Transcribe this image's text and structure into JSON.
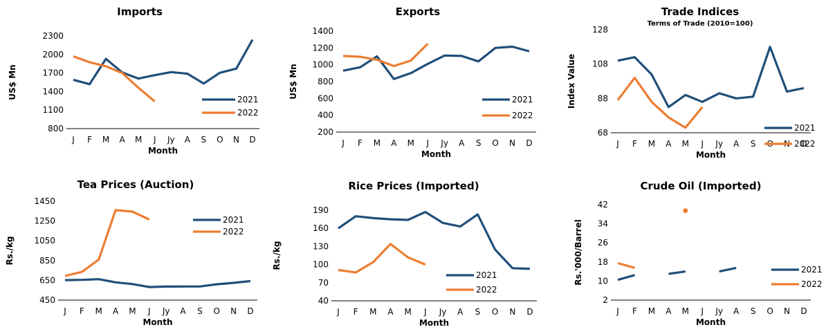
{
  "colors": {
    "s2021": "#1f4e79",
    "s2022": "#ed7d31"
  },
  "chart_data": [
    {
      "type": "line",
      "title": "Imports",
      "subtitle": "",
      "xlabel": "Month",
      "ylabel": "US$ Mn",
      "categories": [
        "J",
        "F",
        "M",
        "A",
        "M",
        "J",
        "Jy",
        "A",
        "S",
        "O",
        "N",
        "D"
      ],
      "yticks": [
        "800",
        "1100",
        "1400",
        "1700",
        "2000",
        "2300"
      ],
      "ylim": [
        800,
        2300
      ],
      "series": [
        {
          "name": "2021",
          "values": [
            1590,
            1520,
            1930,
            1710,
            1610,
            1665,
            1715,
            1690,
            1530,
            1705,
            1770,
            2240
          ]
        },
        {
          "name": "2022",
          "values": [
            1970,
            1875,
            1810,
            1700,
            1460,
            1240,
            null,
            null,
            null,
            null,
            null,
            null
          ]
        }
      ]
    },
    {
      "type": "line",
      "title": "Exports",
      "subtitle": "",
      "xlabel": "Month",
      "ylabel": "US$ Mn",
      "categories": [
        "J",
        "F",
        "M",
        "A",
        "M",
        "J",
        "Jy",
        "A",
        "S",
        "O",
        "N",
        "D"
      ],
      "yticks": [
        "200",
        "400",
        "600",
        "800",
        "1000",
        "1200",
        "1400"
      ],
      "ylim": [
        200,
        1400
      ],
      "series": [
        {
          "name": "2021",
          "values": [
            930,
            970,
            1100,
            830,
            900,
            1010,
            1110,
            1105,
            1040,
            1200,
            1215,
            1160
          ]
        },
        {
          "name": "2022",
          "values": [
            1105,
            1095,
            1060,
            985,
            1050,
            1250,
            null,
            null,
            null,
            null,
            null,
            null
          ]
        }
      ]
    },
    {
      "type": "line",
      "title": "Trade Indices",
      "subtitle": "Terms of Trade (2010=100)",
      "xlabel": "Month",
      "ylabel": "Index Value",
      "categories": [
        "J",
        "F",
        "M",
        "A",
        "M",
        "J",
        "Jy",
        "A",
        "S",
        "O",
        "N",
        "D"
      ],
      "yticks": [
        "68",
        "88",
        "108",
        "128"
      ],
      "ylim": [
        68,
        128
      ],
      "series": [
        {
          "name": "2021",
          "values": [
            110,
            112,
            102,
            83,
            90,
            86,
            91,
            88,
            89,
            118,
            92,
            94
          ]
        },
        {
          "name": "2022",
          "values": [
            87,
            100,
            86,
            77,
            71,
            83,
            null,
            null,
            null,
            null,
            null,
            null
          ]
        }
      ]
    },
    {
      "type": "line",
      "title": "Tea Prices (Auction)",
      "subtitle": "",
      "xlabel": "Month",
      "ylabel": "Rs./kg",
      "categories": [
        "J",
        "F",
        "M",
        "A",
        "M",
        "J",
        "Jy",
        "A",
        "S",
        "O",
        "N",
        "D"
      ],
      "yticks": [
        "450",
        "650",
        "850",
        "1050",
        "1250",
        "1450"
      ],
      "ylim": [
        450,
        1450
      ],
      "series": [
        {
          "name": "2021",
          "values": [
            652,
            655,
            662,
            630,
            612,
            582,
            587,
            588,
            588,
            610,
            625,
            642
          ]
        },
        {
          "name": "2022",
          "values": [
            695,
            735,
            860,
            1360,
            1345,
            1265,
            null,
            null,
            null,
            null,
            null,
            null
          ]
        }
      ]
    },
    {
      "type": "line",
      "title": "Rice Prices (Imported)",
      "subtitle": "",
      "xlabel": "Month",
      "ylabel": "Rs./kg",
      "categories": [
        "J",
        "F",
        "M",
        "A",
        "M",
        "J",
        "Jy",
        "A",
        "S",
        "O",
        "N",
        "D"
      ],
      "yticks": [
        "40",
        "70",
        "100",
        "130",
        "160",
        "190"
      ],
      "ylim": [
        40,
        190
      ],
      "series": [
        {
          "name": "2021",
          "values": [
            160,
            180,
            177,
            175,
            174,
            187,
            169,
            163,
            183,
            125,
            94,
            93
          ]
        },
        {
          "name": "2022",
          "values": [
            91,
            87,
            104,
            134,
            112,
            100,
            null,
            null,
            null,
            null,
            null,
            null
          ]
        }
      ]
    },
    {
      "type": "line",
      "title": "Crude Oil (Imported)",
      "subtitle": "",
      "xlabel": "Month",
      "ylabel": "Rs.'000/Barrel",
      "categories": [
        "J",
        "F",
        "M",
        "A",
        "M",
        "J",
        "Jy",
        "A",
        "S",
        "O",
        "N",
        "D"
      ],
      "yticks": [
        "2",
        "10",
        "18",
        "26",
        "34",
        "42"
      ],
      "ylim": [
        2,
        42
      ],
      "series": [
        {
          "name": "2021",
          "values": [
            10.5,
            12.5,
            null,
            13,
            14,
            null,
            14,
            15.5,
            null,
            null,
            null,
            null
          ]
        },
        {
          "name": "2022",
          "values": [
            17.5,
            15.5,
            null,
            null,
            39.5,
            null,
            null,
            null,
            null,
            null,
            null,
            null
          ]
        }
      ]
    }
  ]
}
